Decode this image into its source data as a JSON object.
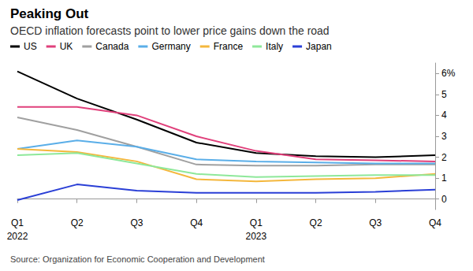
{
  "chart_data": {
    "type": "line",
    "title": "Peaking Out",
    "subtitle": "OECD inflation forecasts point to lower price gains down the road",
    "source": "Source: Organization for Economic Cooperation and Development",
    "categories": [
      "Q1\n2022",
      "Q2",
      "Q3",
      "Q4",
      "Q1\n2023",
      "Q2",
      "Q3",
      "Q4"
    ],
    "series": [
      {
        "name": "US",
        "color": "#000000",
        "values": [
          6.1,
          4.8,
          3.8,
          2.7,
          2.2,
          2.05,
          2.0,
          2.1
        ]
      },
      {
        "name": "UK",
        "color": "#e0407b",
        "values": [
          4.4,
          4.4,
          4.0,
          3.0,
          2.3,
          1.9,
          1.85,
          1.8
        ]
      },
      {
        "name": "Canada",
        "color": "#a0a0a0",
        "values": [
          3.9,
          3.3,
          2.5,
          1.65,
          1.6,
          1.6,
          1.65,
          1.65
        ]
      },
      {
        "name": "Germany",
        "color": "#5aaee8",
        "values": [
          2.4,
          2.8,
          2.5,
          1.9,
          1.8,
          1.75,
          1.7,
          1.7
        ]
      },
      {
        "name": "France",
        "color": "#f4b73c",
        "values": [
          2.4,
          2.25,
          1.8,
          0.95,
          0.85,
          0.95,
          1.0,
          1.2
        ]
      },
      {
        "name": "Italy",
        "color": "#8ee89a",
        "values": [
          2.1,
          2.2,
          1.7,
          1.2,
          1.05,
          1.1,
          1.15,
          1.15
        ]
      },
      {
        "name": "Japan",
        "color": "#2a3fd6",
        "values": [
          -0.05,
          0.7,
          0.4,
          0.3,
          0.3,
          0.3,
          0.35,
          0.45
        ]
      }
    ],
    "ylim": [
      -0.5,
      6.5
    ],
    "yticks": [
      0,
      1,
      2,
      3,
      4,
      5,
      {
        "value": 6,
        "label": "6%"
      }
    ],
    "grid": false,
    "legend": "top-left"
  }
}
